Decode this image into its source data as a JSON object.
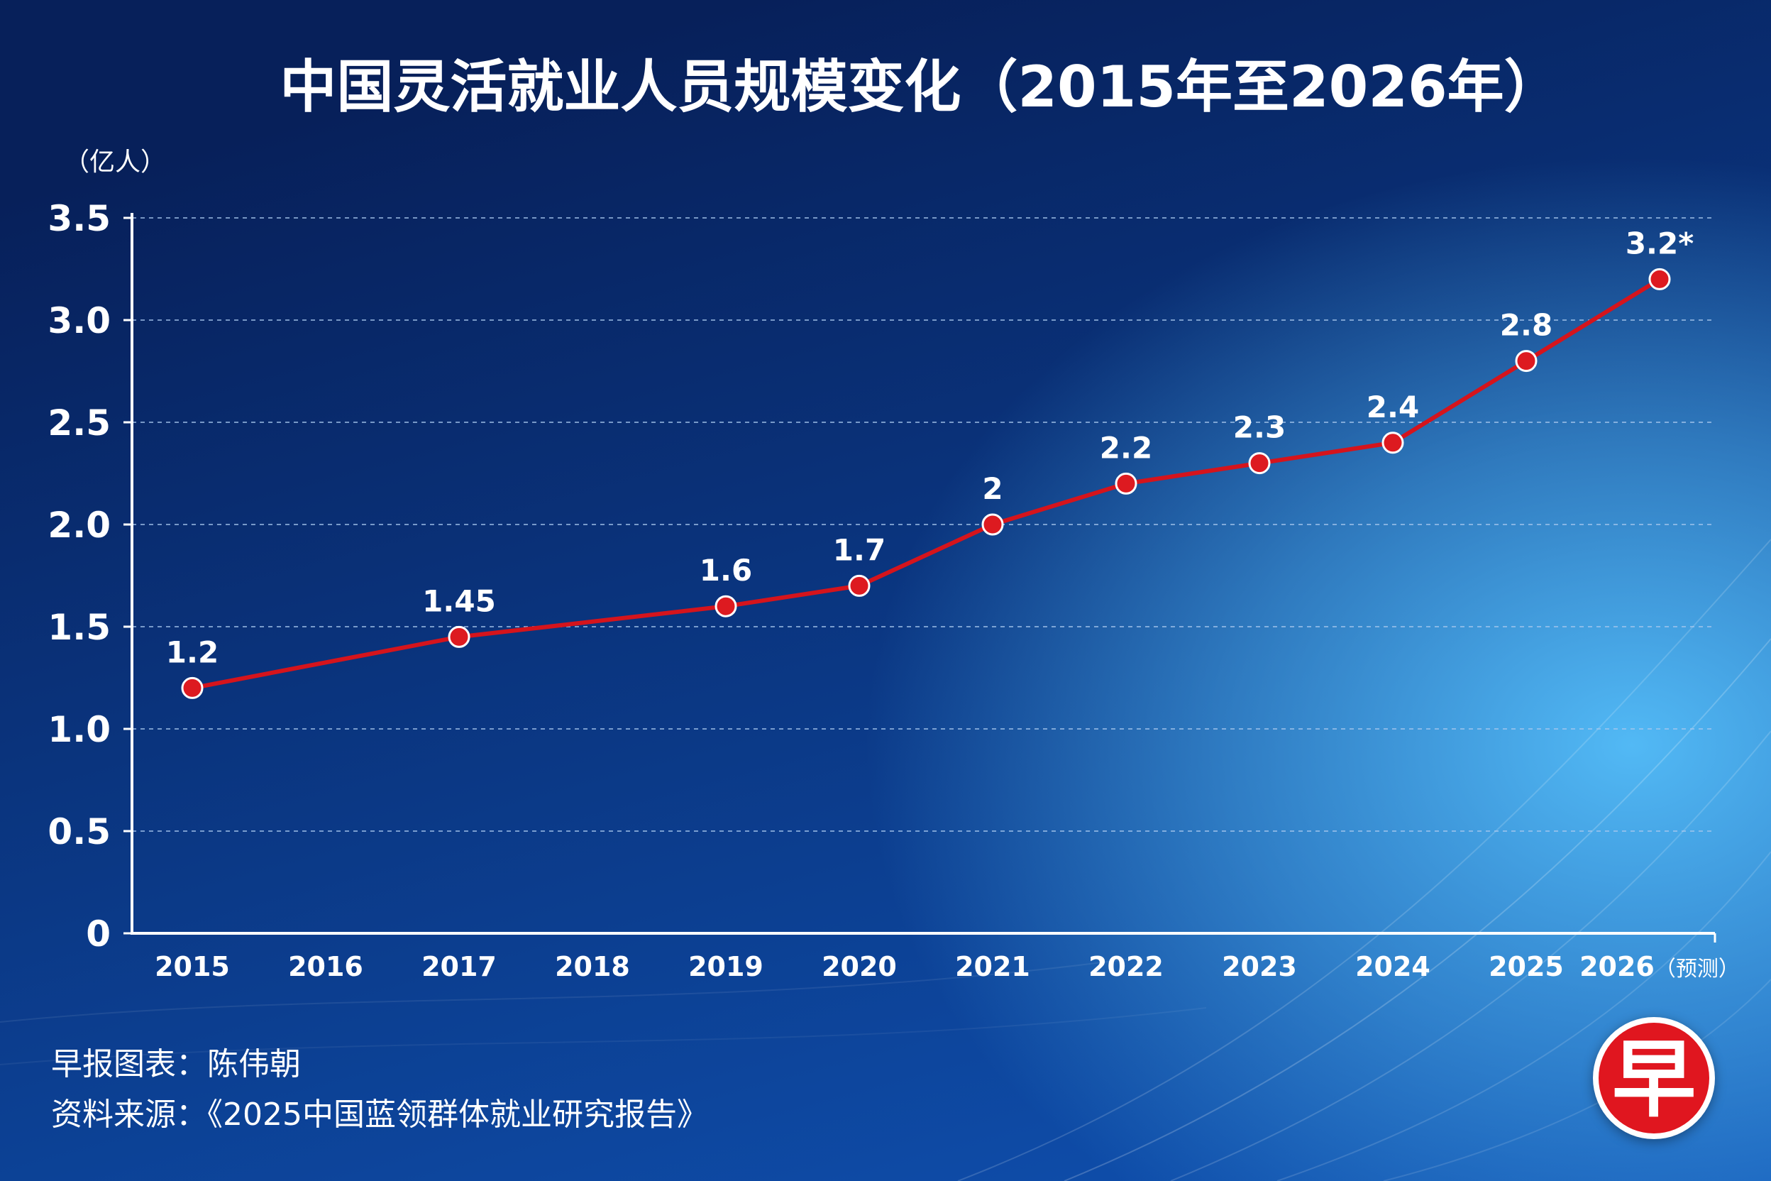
{
  "colors": {
    "background_top": "#07205a",
    "background_bottom": "#0f52b3",
    "background_glow": "#52b9f5",
    "series_line": "#d5141c",
    "data_point": "#dd1a20",
    "gridline": "#a8c8ee",
    "axis": "#ffffff",
    "text": "#ffffff",
    "logo_red": "#e0161f"
  },
  "chart_data": {
    "type": "line",
    "title": "中国灵活就业人员规模变化（2015年至2026年）",
    "ylabel": "（亿人）",
    "categories": [
      "2015",
      "2016",
      "2017",
      "2018",
      "2019",
      "2020",
      "2021",
      "2022",
      "2023",
      "2024",
      "2025",
      "2026"
    ],
    "x_tick_notes": [
      "",
      "",
      "",
      "",
      "",
      "",
      "",
      "",
      "",
      "",
      "",
      "（预测）"
    ],
    "ylim": [
      0,
      3.5
    ],
    "yticks": [
      0,
      0.5,
      1.0,
      1.5,
      2.0,
      2.5,
      3.0,
      3.5
    ],
    "ytick_labels": [
      "0",
      "0.5",
      "1.0",
      "1.5",
      "2.0",
      "2.5",
      "3.0",
      "3.5"
    ],
    "grid": true,
    "legend": "none",
    "series": [
      {
        "values": [
          1.2,
          null,
          1.45,
          null,
          1.6,
          1.7,
          2,
          2.2,
          2.3,
          2.4,
          2.8,
          3.2
        ],
        "data_labels": [
          "1.2",
          null,
          "1.45",
          null,
          "1.6",
          "1.7",
          "2",
          "2.2",
          "2.3",
          "2.4",
          "2.8",
          "3.2*"
        ]
      }
    ]
  },
  "footer": {
    "credit": "早报图表：陈伟朝",
    "source": "资料来源：《2025中国蓝领群体就业研究报告》"
  },
  "logo": {
    "text": "早"
  }
}
